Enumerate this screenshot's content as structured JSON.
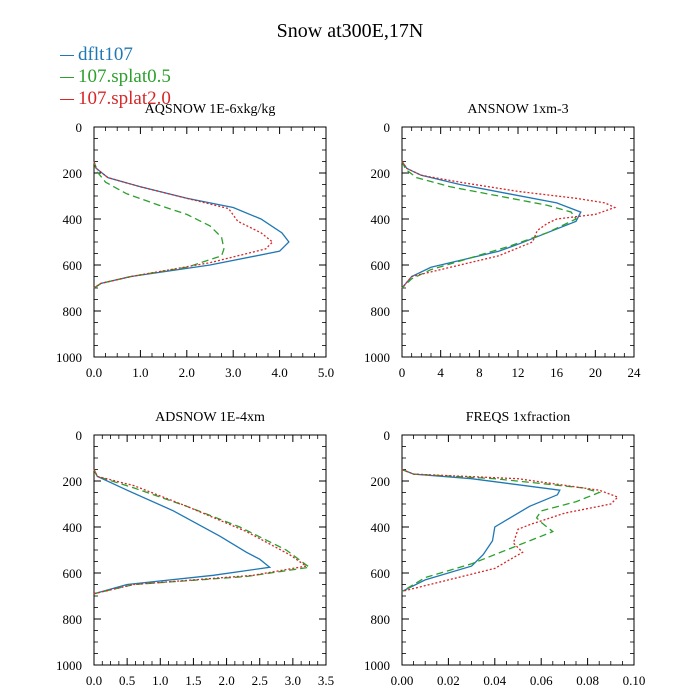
{
  "figure": {
    "title": "Snow at300E,17N"
  },
  "colors": {
    "dflt107": "#1f77b4",
    "splat05": "#2ca02c",
    "splat20": "#d62728"
  },
  "legend": [
    {
      "label": "dflt107",
      "color": "#1f77b4",
      "dash": ""
    },
    {
      "label": "107.splat0.5",
      "color": "#2ca02c",
      "dash": "7,4"
    },
    {
      "label": "107.splat2.0",
      "color": "#d62728",
      "dash": "2,2"
    }
  ],
  "chart_data": [
    {
      "type": "line",
      "title": "AQSNOW  1E-6xkg/kg",
      "xlim": [
        0,
        5
      ],
      "ylim": [
        1000,
        0
      ],
      "xticks": [
        0,
        1,
        2,
        3,
        4,
        5
      ],
      "xtick_labels": [
        "0.0",
        "1.0",
        "2.0",
        "3.0",
        "4.0",
        "5.0"
      ],
      "yticks": [
        0,
        200,
        400,
        600,
        800,
        1000
      ],
      "ytick_labels": [
        "0",
        "200",
        "400",
        "600",
        "800",
        "1000"
      ],
      "series": [
        {
          "name": "dflt107",
          "x": [
            0,
            0.05,
            0.3,
            1.0,
            2.0,
            3.0,
            3.6,
            4.05,
            4.2,
            4.0,
            2.5,
            0.8,
            0.15,
            0
          ],
          "y": [
            150,
            180,
            220,
            260,
            310,
            350,
            400,
            460,
            500,
            540,
            600,
            650,
            680,
            700
          ]
        },
        {
          "name": "107.splat0.5",
          "x": [
            0,
            0.05,
            0.25,
            0.7,
            1.4,
            2.0,
            2.5,
            2.75,
            2.8,
            2.75,
            2.0,
            0.8,
            0.15,
            0
          ],
          "y": [
            150,
            190,
            240,
            290,
            340,
            380,
            430,
            480,
            530,
            560,
            610,
            650,
            680,
            700
          ]
        },
        {
          "name": "107.splat2.0",
          "x": [
            0,
            0.05,
            0.3,
            1.0,
            2.0,
            2.9,
            3.1,
            3.6,
            3.85,
            3.7,
            2.5,
            0.8,
            0.15,
            0
          ],
          "y": [
            150,
            180,
            220,
            260,
            310,
            355,
            410,
            460,
            500,
            530,
            590,
            650,
            680,
            700
          ]
        }
      ]
    },
    {
      "type": "line",
      "title": "ANSNOW  1xm-3",
      "xlim": [
        0,
        24
      ],
      "ylim": [
        1000,
        0
      ],
      "xticks": [
        0,
        4,
        8,
        12,
        16,
        20,
        24
      ],
      "xtick_labels": [
        "0",
        "4",
        "8",
        "12",
        "16",
        "20",
        "24"
      ],
      "yticks": [
        0,
        200,
        400,
        600,
        800,
        1000
      ],
      "ytick_labels": [
        "0",
        "200",
        "400",
        "600",
        "800",
        "1000"
      ],
      "series": [
        {
          "name": "dflt107",
          "x": [
            0,
            0.5,
            2,
            6,
            11,
            16,
            18.5,
            18,
            15,
            12,
            10,
            7,
            3,
            1,
            0
          ],
          "y": [
            150,
            180,
            210,
            250,
            290,
            330,
            370,
            410,
            460,
            510,
            540,
            570,
            610,
            650,
            700
          ]
        },
        {
          "name": "107.splat0.5",
          "x": [
            0,
            0.4,
            1.5,
            5,
            10,
            15,
            17.5,
            18,
            15,
            11,
            7,
            3,
            1,
            0
          ],
          "y": [
            150,
            185,
            220,
            260,
            300,
            340,
            370,
            400,
            460,
            520,
            570,
            620,
            660,
            700
          ]
        },
        {
          "name": "107.splat2.0",
          "x": [
            0,
            0.5,
            2,
            6,
            12,
            18,
            21,
            22,
            20,
            16,
            15,
            14,
            13.5,
            10,
            5,
            1,
            0
          ],
          "y": [
            150,
            180,
            210,
            240,
            280,
            310,
            330,
            350,
            380,
            400,
            420,
            450,
            500,
            560,
            610,
            650,
            700
          ]
        }
      ]
    },
    {
      "type": "line",
      "title": "ADSNOW  1E-4xm",
      "xlim": [
        0,
        3.5
      ],
      "ylim": [
        1000,
        0
      ],
      "xticks": [
        0,
        0.5,
        1,
        1.5,
        2,
        2.5,
        3,
        3.5
      ],
      "xtick_labels": [
        "0.0",
        "0.5",
        "1.0",
        "1.5",
        "2.0",
        "2.5",
        "3.0",
        "3.5"
      ],
      "yticks": [
        0,
        200,
        400,
        600,
        800,
        1000
      ],
      "ytick_labels": [
        "0",
        "200",
        "400",
        "600",
        "800",
        "1000"
      ],
      "series": [
        {
          "name": "dflt107",
          "x": [
            0,
            0.05,
            0.5,
            1.2,
            1.9,
            2.3,
            2.5,
            2.65,
            1.8,
            0.5,
            0
          ],
          "y": [
            150,
            180,
            240,
            330,
            440,
            510,
            540,
            575,
            610,
            650,
            690
          ]
        },
        {
          "name": "107.splat0.5",
          "x": [
            0,
            0.05,
            0.6,
            1.4,
            2.2,
            2.9,
            3.25,
            2.3,
            0.6,
            0
          ],
          "y": [
            150,
            180,
            230,
            310,
            400,
            500,
            575,
            615,
            650,
            690
          ]
        },
        {
          "name": "107.splat2.0",
          "x": [
            0,
            0.05,
            0.6,
            1.4,
            2.3,
            2.95,
            3.2,
            2.4,
            0.6,
            0
          ],
          "y": [
            150,
            180,
            220,
            310,
            420,
            520,
            570,
            610,
            650,
            690
          ]
        }
      ]
    },
    {
      "type": "line",
      "title": "FREQS  1xfraction",
      "xlim": [
        0,
        0.1
      ],
      "ylim": [
        1000,
        0
      ],
      "xticks": [
        0,
        0.02,
        0.04,
        0.06,
        0.08,
        0.1
      ],
      "xtick_labels": [
        "0.00",
        "0.02",
        "0.04",
        "0.06",
        "0.08",
        "0.10"
      ],
      "yticks": [
        0,
        200,
        400,
        600,
        800,
        1000
      ],
      "ytick_labels": [
        "0",
        "200",
        "400",
        "600",
        "800",
        "1000"
      ],
      "series": [
        {
          "name": "dflt107",
          "x": [
            0,
            0.005,
            0.03,
            0.068,
            0.067,
            0.055,
            0.05,
            0.04,
            0.039,
            0.035,
            0.03,
            0.01,
            0
          ],
          "y": [
            150,
            170,
            190,
            240,
            260,
            310,
            340,
            400,
            460,
            520,
            570,
            630,
            680
          ]
        },
        {
          "name": "107.splat0.5",
          "x": [
            0,
            0.005,
            0.04,
            0.078,
            0.085,
            0.075,
            0.06,
            0.058,
            0.06,
            0.065,
            0.05,
            0.03,
            0.01,
            0
          ],
          "y": [
            150,
            170,
            190,
            230,
            250,
            290,
            330,
            360,
            380,
            420,
            480,
            560,
            620,
            680
          ]
        },
        {
          "name": "107.splat2.0",
          "x": [
            0,
            0.005,
            0.05,
            0.085,
            0.093,
            0.09,
            0.07,
            0.055,
            0.05,
            0.048,
            0.052,
            0.04,
            0.02,
            0
          ],
          "y": [
            150,
            170,
            190,
            240,
            270,
            300,
            340,
            390,
            410,
            470,
            510,
            580,
            630,
            680
          ]
        }
      ]
    }
  ]
}
